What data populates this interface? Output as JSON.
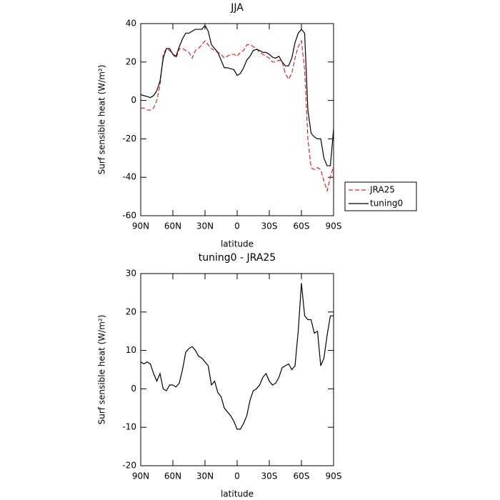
{
  "chart_data": [
    {
      "type": "line",
      "title": "JJA",
      "x_label": "latitude",
      "y_label": "Surf sensible heat (W/m²)",
      "x": [
        90,
        87,
        84,
        81,
        78,
        75,
        72,
        69,
        66,
        63,
        60,
        57,
        54,
        51,
        48,
        45,
        42,
        39,
        36,
        33,
        30,
        27,
        24,
        21,
        18,
        15,
        12,
        9,
        6,
        3,
        0,
        -3,
        -6,
        -9,
        -12,
        -15,
        -18,
        -21,
        -24,
        -27,
        -30,
        -33,
        -36,
        -39,
        -42,
        -45,
        -48,
        -51,
        -54,
        -57,
        -60,
        -63,
        -66,
        -69,
        -72,
        -75,
        -78,
        -81,
        -84,
        -87,
        -90
      ],
      "series": [
        {
          "name": "JRA25",
          "color": "#e8231e",
          "linestyle": "dashed",
          "values": [
            -4,
            -4,
            -5,
            -5,
            -4,
            0,
            8,
            24,
            27,
            26,
            24,
            22,
            27,
            27,
            26,
            25,
            22,
            26,
            27,
            29,
            31,
            29,
            27,
            26,
            25,
            24,
            22,
            23,
            24,
            24,
            23,
            25,
            26,
            29,
            29,
            28,
            27,
            25,
            24,
            23,
            22,
            20,
            20,
            21,
            20,
            14,
            11,
            14,
            22,
            28,
            31,
            16,
            -20,
            -35,
            -36,
            -35,
            -36,
            -42,
            -47,
            -40,
            -34
          ]
        },
        {
          "name": "tuning0",
          "color": "#000000",
          "linestyle": "solid",
          "values": [
            3,
            2.5,
            2,
            1.5,
            2.5,
            5,
            10,
            22,
            27,
            27,
            24,
            23,
            28,
            32,
            35,
            35,
            36,
            37,
            37,
            37,
            39,
            36,
            29,
            27,
            25,
            21,
            17,
            17,
            16.5,
            16,
            13,
            14,
            17,
            21,
            23,
            26,
            26.5,
            26,
            25,
            25,
            24,
            22.5,
            22,
            23,
            20,
            18,
            18,
            22,
            30,
            35,
            37,
            35,
            -5,
            -17,
            -19,
            -20,
            -20,
            -30,
            -34,
            -34,
            -15
          ]
        }
      ],
      "xlim": [
        90,
        -90
      ],
      "xticks": [
        {
          "value": 90,
          "label": "90N"
        },
        {
          "value": 60,
          "label": "60N"
        },
        {
          "value": 30,
          "label": "30N"
        },
        0,
        {
          "value": -30,
          "label": "30S"
        },
        {
          "value": -60,
          "label": "60S"
        },
        {
          "value": -90,
          "label": "90S"
        }
      ],
      "ylim": [
        -60,
        40
      ],
      "yticks": [
        -60,
        -40,
        -20,
        0,
        20,
        40
      ],
      "grid": false,
      "legend": "right"
    },
    {
      "type": "line",
      "title": "tuning0 - JRA25",
      "x_label": "latitude",
      "y_label": "Surf sensible heat (W/m²)",
      "x": [
        90,
        87,
        84,
        81,
        78,
        75,
        72,
        69,
        66,
        63,
        60,
        57,
        54,
        51,
        48,
        45,
        42,
        39,
        36,
        33,
        30,
        27,
        24,
        21,
        18,
        15,
        12,
        9,
        6,
        3,
        0,
        -3,
        -6,
        -9,
        -12,
        -15,
        -18,
        -21,
        -24,
        -27,
        -30,
        -33,
        -36,
        -39,
        -42,
        -45,
        -48,
        -51,
        -54,
        -57,
        -60,
        -63,
        -66,
        -69,
        -72,
        -75,
        -78,
        -81,
        -84,
        -87,
        -90
      ],
      "series": [
        {
          "color": "#000000",
          "linestyle": "solid",
          "values": [
            7,
            6.5,
            7,
            6.5,
            4,
            2,
            4,
            0,
            -0.5,
            1,
            1,
            0.5,
            1.5,
            5,
            9.5,
            10.5,
            11,
            10,
            8.5,
            8,
            7,
            6,
            1,
            2,
            -1,
            -2,
            -5,
            -6,
            -7,
            -8.5,
            -10.5,
            -10.5,
            -9,
            -7,
            -3,
            -0.5,
            0,
            1,
            3,
            4,
            2,
            1,
            1.5,
            3,
            5.5,
            6,
            6.5,
            5,
            6,
            15,
            27.5,
            19,
            18,
            18,
            14.5,
            15,
            6,
            8,
            14,
            19,
            19
          ]
        }
      ],
      "xlim": [
        90,
        -90
      ],
      "xticks": [
        {
          "value": 90,
          "label": "90N"
        },
        {
          "value": 60,
          "label": "60N"
        },
        {
          "value": 30,
          "label": "30N"
        },
        0,
        {
          "value": -30,
          "label": "30S"
        },
        {
          "value": -60,
          "label": "60S"
        },
        {
          "value": -90,
          "label": "90S"
        }
      ],
      "ylim": [
        -20,
        30
      ],
      "yticks": [
        -20,
        -10,
        0,
        10,
        20,
        30
      ],
      "grid": false
    }
  ]
}
